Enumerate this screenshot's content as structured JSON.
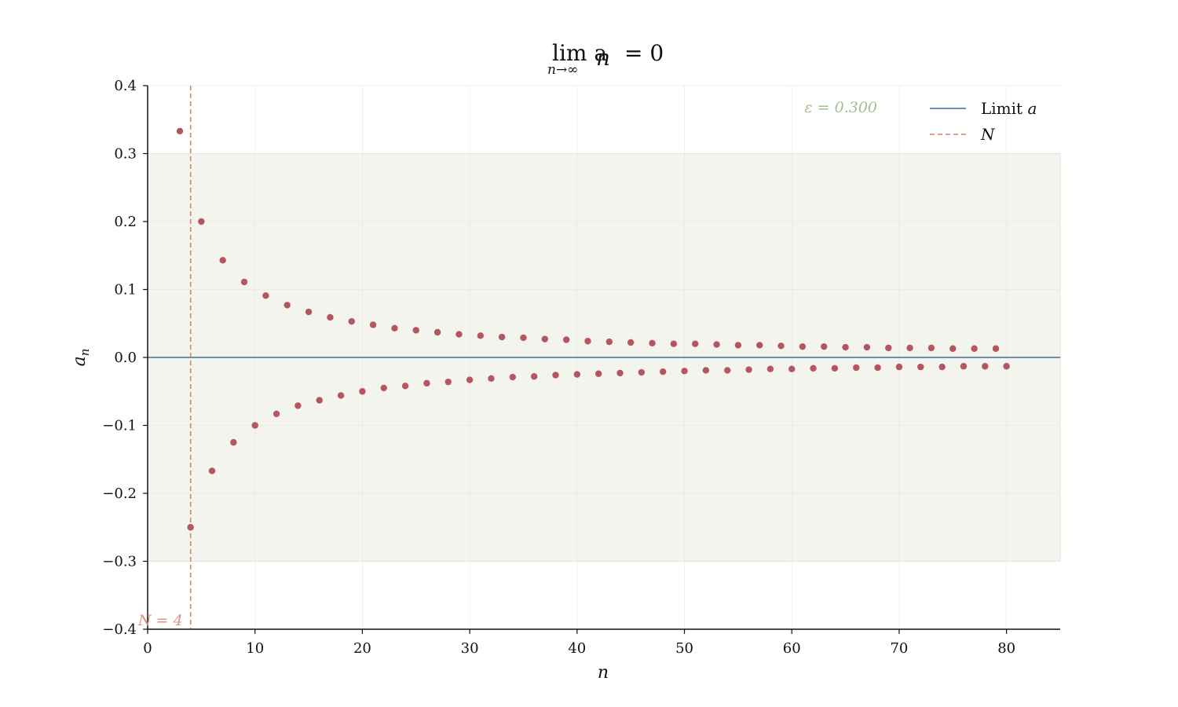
{
  "chart_data": {
    "type": "scatter",
    "title": "lim aₙ = 0",
    "title_main": "lim a",
    "title_subscript": "n",
    "title_suffix": "= 0",
    "title_under": "n→∞",
    "xlabel": "n",
    "ylabel": "a",
    "ylabel_subscript": "n",
    "xlim": [
      0,
      85
    ],
    "ylim": [
      -0.4,
      0.4
    ],
    "xticks": [
      0,
      10,
      20,
      30,
      40,
      50,
      60,
      70,
      80
    ],
    "yticks": [
      0.4,
      0.3,
      0.2,
      0.1,
      0.0,
      -0.1,
      -0.2,
      -0.3,
      -0.4
    ],
    "ytick_labels": [
      "0.4",
      "0.3",
      "0.2",
      "0.1",
      "0.0",
      "−0.1",
      "−0.2",
      "−0.3",
      "−0.4"
    ],
    "grid": true,
    "limit": 0,
    "epsilon": 0.3,
    "epsilon_label": "ε = 0.300",
    "N": 4,
    "N_label": "N = 4",
    "series": [
      {
        "color": "#b55560",
        "marker": "circle",
        "n_start": 3,
        "n_end": 80,
        "points": [
          [
            3,
            0.333
          ],
          [
            4,
            -0.25
          ],
          [
            5,
            0.2
          ],
          [
            6,
            -0.167
          ],
          [
            7,
            0.143
          ],
          [
            8,
            -0.125
          ],
          [
            9,
            0.111
          ],
          [
            10,
            -0.1
          ],
          [
            11,
            0.091
          ],
          [
            12,
            -0.083
          ],
          [
            13,
            0.077
          ],
          [
            14,
            -0.071
          ],
          [
            15,
            0.067
          ],
          [
            16,
            -0.063
          ],
          [
            17,
            0.059
          ],
          [
            18,
            -0.056
          ],
          [
            19,
            0.053
          ],
          [
            20,
            -0.05
          ],
          [
            21,
            0.048
          ],
          [
            22,
            -0.045
          ],
          [
            23,
            0.043
          ],
          [
            24,
            -0.042
          ],
          [
            25,
            0.04
          ],
          [
            26,
            -0.038
          ],
          [
            27,
            0.037
          ],
          [
            28,
            -0.036
          ],
          [
            29,
            0.034
          ],
          [
            30,
            -0.033
          ],
          [
            31,
            0.032
          ],
          [
            32,
            -0.031
          ],
          [
            33,
            0.03
          ],
          [
            34,
            -0.029
          ],
          [
            35,
            0.029
          ],
          [
            36,
            -0.028
          ],
          [
            37,
            0.027
          ],
          [
            38,
            -0.026
          ],
          [
            39,
            0.026
          ],
          [
            40,
            -0.025
          ],
          [
            41,
            0.024
          ],
          [
            42,
            -0.024
          ],
          [
            43,
            0.023
          ],
          [
            44,
            -0.023
          ],
          [
            45,
            0.022
          ],
          [
            46,
            -0.022
          ],
          [
            47,
            0.021
          ],
          [
            48,
            -0.021
          ],
          [
            49,
            0.02
          ],
          [
            50,
            -0.02
          ],
          [
            51,
            0.02
          ],
          [
            52,
            -0.019
          ],
          [
            53,
            0.019
          ],
          [
            54,
            -0.019
          ],
          [
            55,
            0.018
          ],
          [
            56,
            -0.018
          ],
          [
            57,
            0.018
          ],
          [
            58,
            -0.017
          ],
          [
            59,
            0.017
          ],
          [
            60,
            -0.017
          ],
          [
            61,
            0.016
          ],
          [
            62,
            -0.016
          ],
          [
            63,
            0.016
          ],
          [
            64,
            -0.016
          ],
          [
            65,
            0.015
          ],
          [
            66,
            -0.015
          ],
          [
            67,
            0.015
          ],
          [
            68,
            -0.015
          ],
          [
            69,
            0.014
          ],
          [
            70,
            -0.014
          ],
          [
            71,
            0.014
          ],
          [
            72,
            -0.014
          ],
          [
            73,
            0.014
          ],
          [
            74,
            -0.014
          ],
          [
            75,
            0.013
          ],
          [
            76,
            -0.013
          ],
          [
            77,
            0.013
          ],
          [
            78,
            -0.013
          ],
          [
            79,
            0.013
          ],
          [
            80,
            -0.013
          ]
        ]
      }
    ],
    "legend": {
      "position": "top-right",
      "entries": [
        {
          "label": "Limit",
          "label_math": "a",
          "style": "solid",
          "color": "#5a7fa8"
        },
        {
          "label": "",
          "label_math": "N",
          "style": "dashed",
          "color": "#d9826a"
        }
      ]
    },
    "colors": {
      "points": "#b55560",
      "limit_line": "#5a7fa8",
      "N_line": "#d9826a",
      "epsilon_band": "#f2f4ed",
      "epsilon_text": "#a3bf8e",
      "grid": "#e6e6e6",
      "axis": "#111111"
    }
  }
}
